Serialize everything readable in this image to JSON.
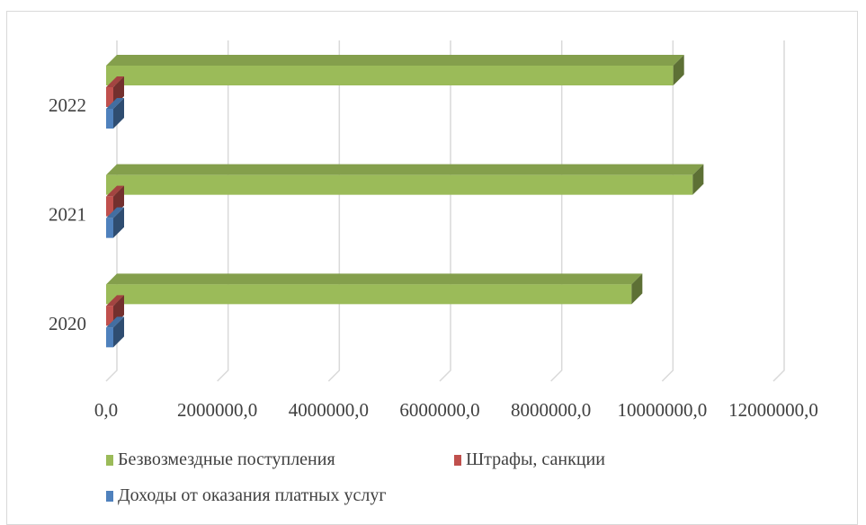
{
  "chart_data": {
    "type": "bar",
    "orientation": "horizontal",
    "three_d": true,
    "categories": [
      "2020",
      "2021",
      "2022"
    ],
    "series": [
      {
        "name": "Доходы от оказания платных услуг",
        "color": "#4f81bd",
        "values": [
          0,
          0,
          0
        ]
      },
      {
        "name": "Штрафы, санкции",
        "color": "#c0504d",
        "values": [
          0,
          0,
          0
        ]
      },
      {
        "name": "Безвозмездные поступления",
        "color": "#9bbb59",
        "values": [
          9450000,
          10550000,
          10200000
        ]
      }
    ],
    "x_ticks": [
      "0,0",
      "2000000,0",
      "4000000,0",
      "6000000,0",
      "8000000,0",
      "10000000,0",
      "12000000,0"
    ],
    "xlim": [
      0,
      12000000
    ],
    "grid": true,
    "legend_position": "bottom"
  },
  "legend": {
    "item1": "Безвозмездные поступления",
    "item2": "Штрафы, санкции",
    "item3": "Доходы от оказания платных услуг"
  }
}
